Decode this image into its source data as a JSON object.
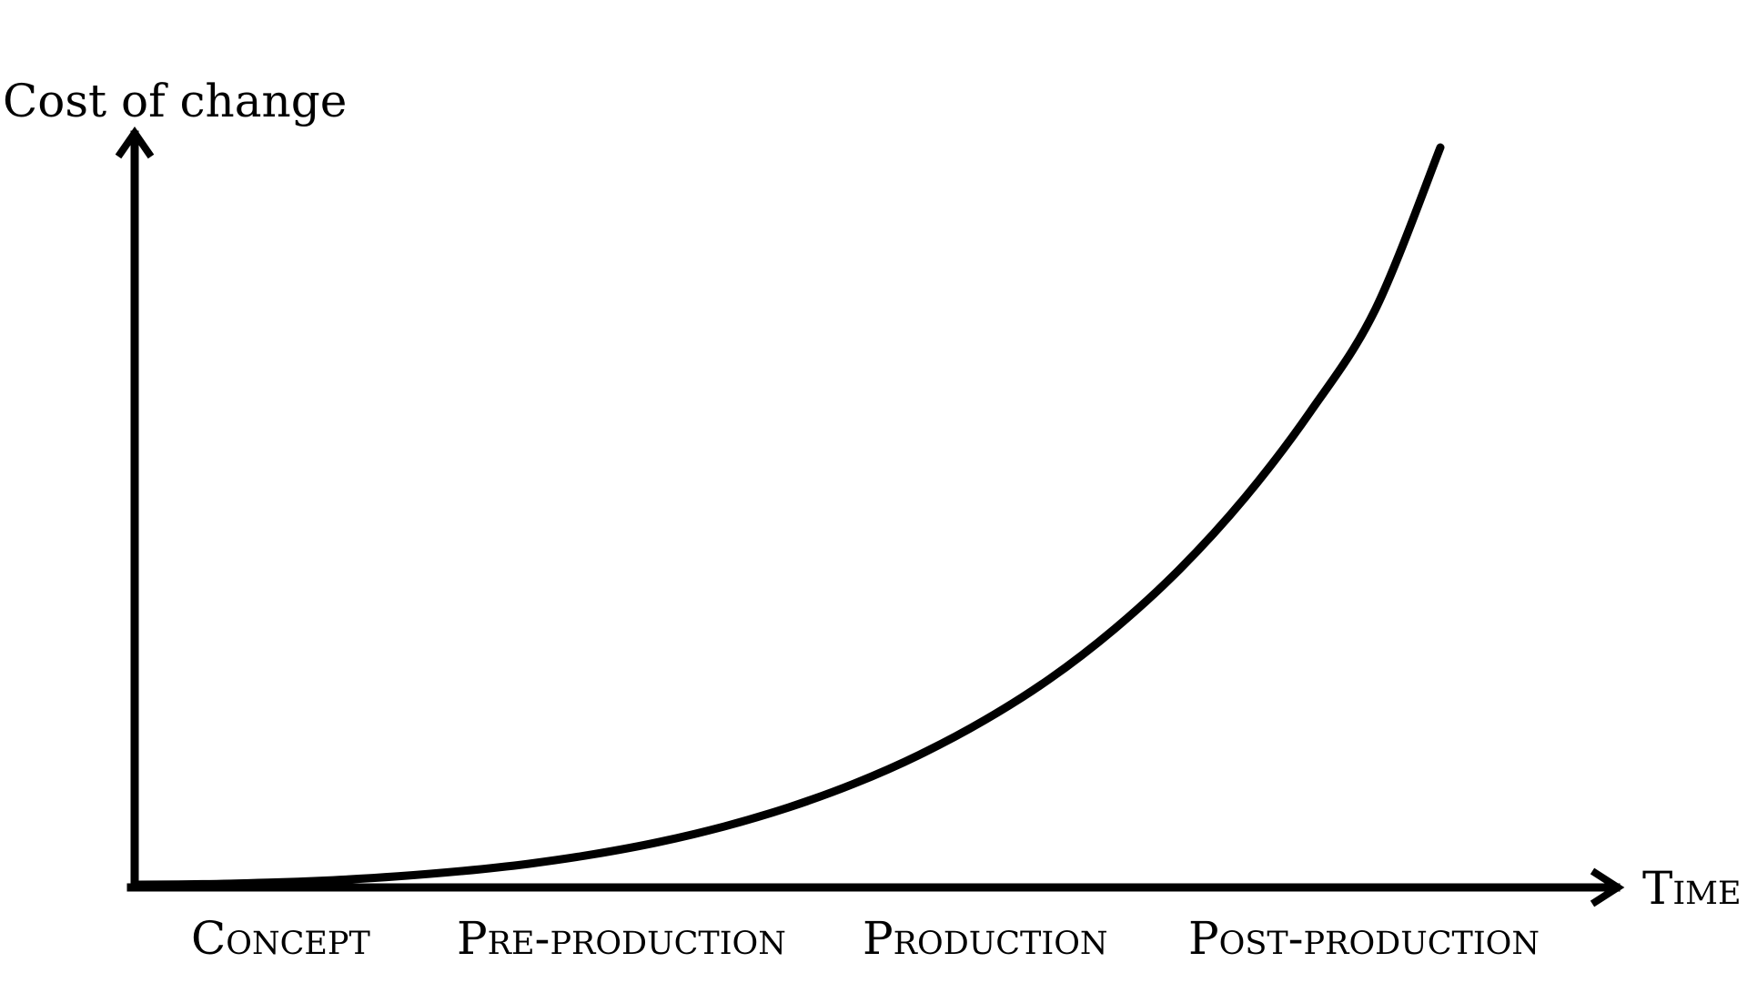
{
  "chart_data": {
    "type": "line",
    "title": "",
    "ylabel": "Cost of change",
    "xlabel": "Time",
    "categories": [
      "Concept",
      "Pre-production",
      "Production",
      "Post-production"
    ],
    "series": [
      {
        "values_description_free": true,
        "x": [
          0,
          0.05,
          0.1,
          0.15,
          0.2,
          0.25,
          0.3,
          0.35,
          0.4,
          0.45,
          0.5,
          0.55,
          0.6,
          0.65,
          0.7,
          0.75,
          0.8,
          0.85,
          0.9,
          0.95,
          1.0
        ],
        "values": [
          0,
          0.0007,
          0.0027,
          0.0061,
          0.0114,
          0.0187,
          0.0283,
          0.0412,
          0.0578,
          0.0788,
          0.105,
          0.137,
          0.176,
          0.223,
          0.279,
          0.347,
          0.428,
          0.525,
          0.641,
          0.78,
          1.0
        ]
      }
    ],
    "xlim": [
      0,
      1
    ],
    "ylim": [
      0,
      1
    ],
    "grid": false,
    "legend": "none",
    "color": "#000000"
  }
}
